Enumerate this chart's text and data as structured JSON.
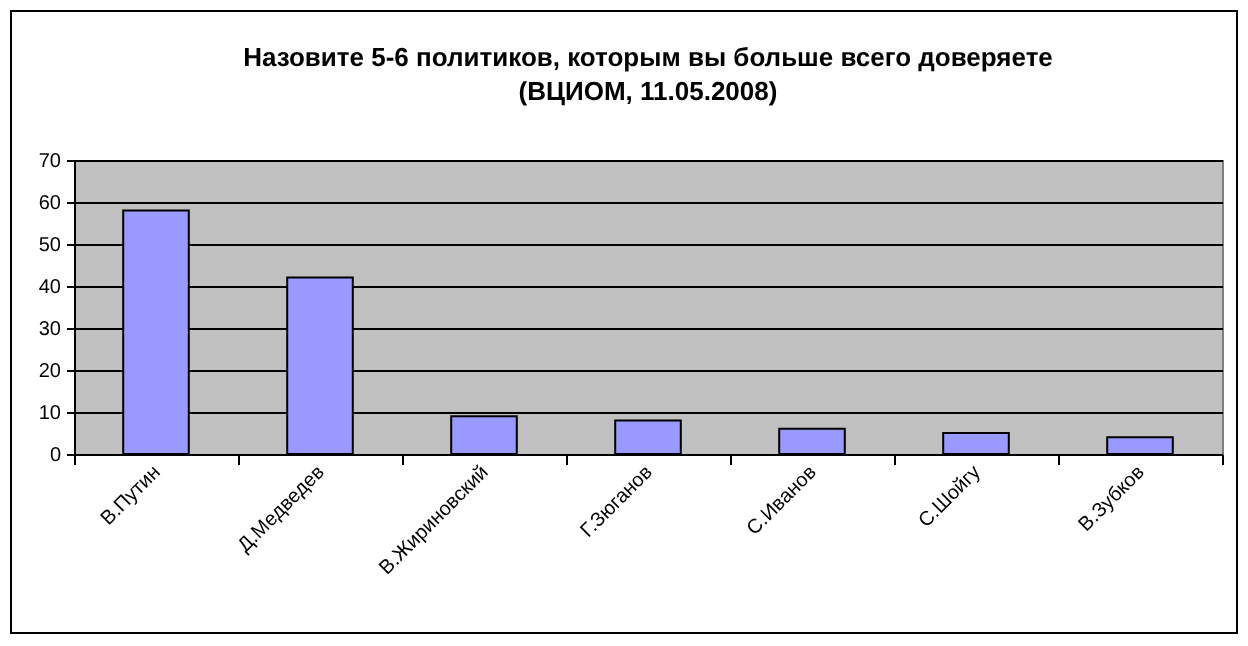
{
  "chart_data": {
    "type": "bar",
    "title": "Назовите 5-6 политиков, которым вы больше всего доверяете",
    "subtitle": "(ВЦИОМ, 11.05.2008)",
    "categories": [
      "В.Путин",
      "Д.Медведев",
      "В.Жириновский",
      "Г.Зюганов",
      "С.Иванов",
      "С.Шойгу",
      "В.Зубков"
    ],
    "values": [
      58,
      42,
      9,
      8,
      6,
      5,
      4
    ],
    "color": "#9999ff",
    "ylim": [
      0,
      70
    ],
    "yticks": [
      0,
      10,
      20,
      30,
      40,
      50,
      60,
      70
    ],
    "grid": "y"
  }
}
